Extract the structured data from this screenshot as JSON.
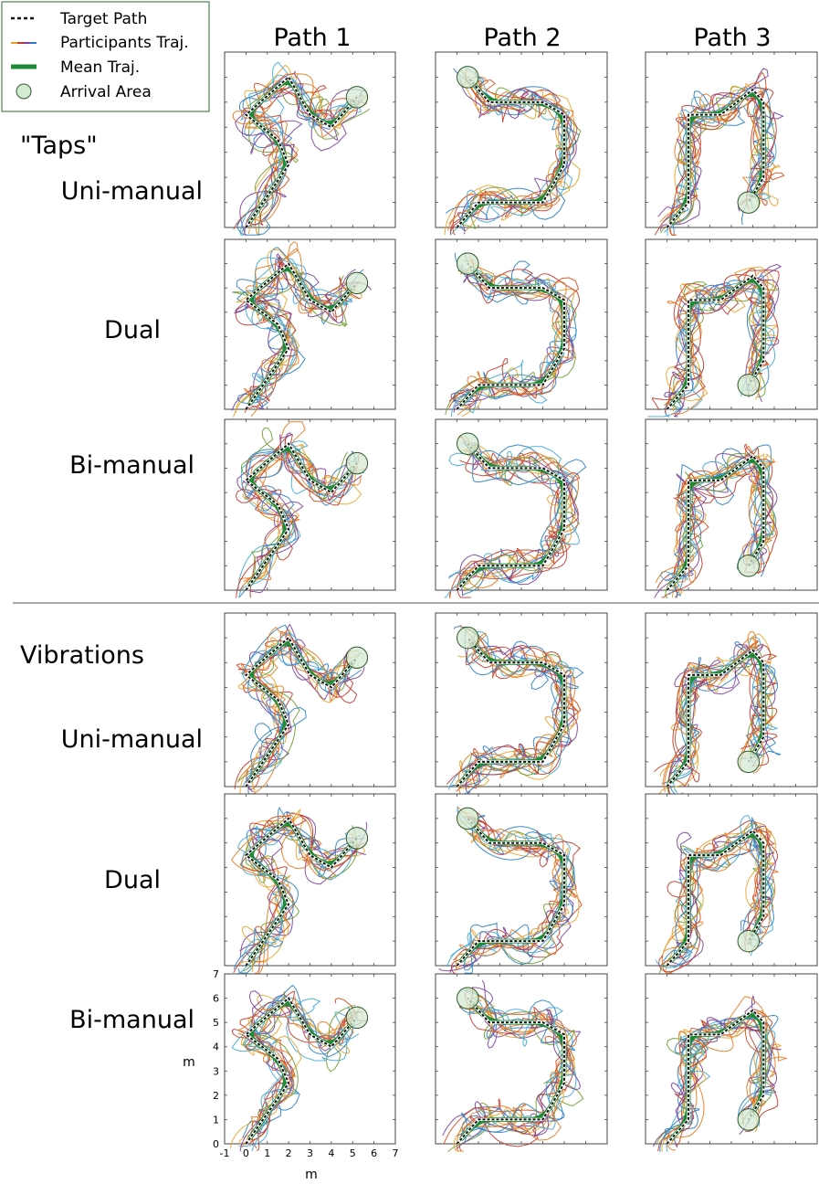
{
  "legend": {
    "items": [
      {
        "label": "Target Path",
        "symbol": "dashed-line",
        "color": "#111111"
      },
      {
        "label": "Participants Traj.",
        "symbol": "multicolor-line",
        "color": "#e8a32a"
      },
      {
        "label": "Mean Traj.",
        "symbol": "thick-line",
        "color": "#1f8a35"
      },
      {
        "label": "Arrival Area",
        "symbol": "circle",
        "color": "#d5ead2"
      }
    ]
  },
  "columns": [
    "Path 1",
    "Path 2",
    "Path 3"
  ],
  "groups": [
    {
      "label": "\"Taps\"",
      "rows": [
        "Uni-manual",
        "Dual",
        "Bi-manual"
      ]
    },
    {
      "label": "Vibrations",
      "rows": [
        "Uni-manual",
        "Dual",
        "Bi-manual"
      ]
    }
  ],
  "axes": {
    "xlabel": "m",
    "ylabel": "m",
    "xticks": [
      "-1",
      "0",
      "1",
      "2",
      "3",
      "4",
      "5",
      "6",
      "7"
    ],
    "yticks": [
      "0",
      "1",
      "2",
      "3",
      "4",
      "5",
      "6",
      "7"
    ]
  },
  "colors": {
    "target": "#111111",
    "mean": "#1f8a35",
    "arrival_fill": "#d5ead2",
    "participants": [
      "#e8a32a",
      "#2a7fc4",
      "#c0392b",
      "#7b3f99",
      "#3fa9d6",
      "#e6791f",
      "#6d9c2f",
      "#d44a1e"
    ]
  },
  "chart_data": {
    "type": "line",
    "xlim": [
      -1,
      7
    ],
    "ylim": [
      0,
      7
    ],
    "grid": false,
    "paths": [
      {
        "name": "Path 1",
        "target": [
          [
            0,
            0
          ],
          [
            2,
            2.5
          ],
          [
            1.5,
            3.5
          ],
          [
            0,
            4.5
          ],
          [
            2,
            6
          ],
          [
            3,
            4.5
          ],
          [
            4,
            4
          ],
          [
            5.2,
            5.2
          ]
        ],
        "arrival": [
          5.2,
          5.2
        ]
      },
      {
        "name": "Path 2",
        "target": [
          [
            0,
            0
          ],
          [
            1,
            1
          ],
          [
            4,
            1
          ],
          [
            5,
            2.5
          ],
          [
            5,
            4.5
          ],
          [
            4,
            5
          ],
          [
            1.5,
            5
          ],
          [
            0.5,
            6
          ]
        ],
        "arrival": [
          0.5,
          6
        ]
      },
      {
        "name": "Path 3",
        "target": [
          [
            0,
            0
          ],
          [
            1,
            1
          ],
          [
            1,
            4.5
          ],
          [
            2.5,
            4.5
          ],
          [
            4,
            5.5
          ],
          [
            4.5,
            5
          ],
          [
            4.5,
            2
          ],
          [
            3.8,
            1
          ]
        ],
        "arrival": [
          3.8,
          1
        ]
      }
    ]
  }
}
